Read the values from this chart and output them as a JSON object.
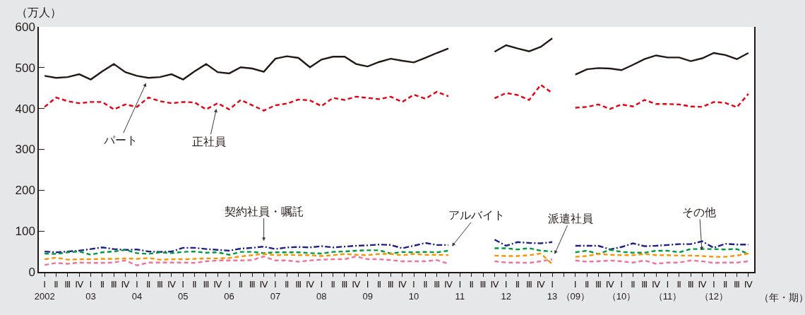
{
  "chart_data": {
    "type": "line",
    "ylabel": "（万人）",
    "xlabel": "（年・期）",
    "categories": [
      "Ⅰ\n2002",
      "Ⅱ",
      "Ⅲ",
      "Ⅳ",
      "Ⅰ\n03",
      "Ⅱ",
      "Ⅲ",
      "Ⅳ",
      "Ⅰ\n04",
      "Ⅱ",
      "Ⅲ",
      "Ⅳ",
      "Ⅰ\n05",
      "Ⅱ",
      "Ⅲ",
      "Ⅳ",
      "Ⅰ\n06",
      "Ⅱ",
      "Ⅲ",
      "Ⅳ",
      "Ⅰ\n07",
      "Ⅱ",
      "Ⅲ",
      "Ⅳ",
      "Ⅰ\n08",
      "Ⅱ",
      "Ⅲ",
      "Ⅳ",
      "Ⅰ\n09",
      "Ⅱ",
      "Ⅲ",
      "Ⅳ",
      "Ⅰ\n10",
      "Ⅱ",
      "Ⅲ",
      "Ⅳ",
      "Ⅰ\n11",
      "Ⅱ",
      "Ⅲ",
      "Ⅳ",
      "Ⅰ\n12",
      "Ⅱ",
      "Ⅲ",
      "Ⅳ",
      "Ⅰ\n13",
      null,
      "Ⅰ\n（09）",
      "Ⅱ",
      "Ⅲ",
      "Ⅳ",
      "Ⅰ\n（10）",
      "Ⅱ",
      "Ⅲ",
      "Ⅳ",
      "Ⅰ\n（11）",
      "Ⅱ",
      "Ⅲ",
      "Ⅳ",
      "Ⅰ\n（12）",
      "Ⅱ",
      "Ⅲ",
      "Ⅳ"
    ],
    "ylim": [
      0,
      600
    ],
    "yticks": [
      0,
      100,
      200,
      300,
      400,
      500,
      600
    ],
    "grid": false,
    "legend": false,
    "marker": "none",
    "series": [
      {
        "name": "パート",
        "color": "#231815",
        "line_style": "solid",
        "values": [
          480,
          475,
          477,
          484,
          471,
          491,
          509,
          489,
          480,
          475,
          477,
          484,
          471,
          491,
          509,
          489,
          486,
          501,
          498,
          490,
          522,
          528,
          524,
          501,
          520,
          527,
          527,
          509,
          503,
          514,
          522,
          517,
          513,
          524,
          536,
          547,
          null,
          null,
          null,
          539,
          555,
          547,
          540,
          551,
          572,
          null,
          483,
          496,
          499,
          498,
          494,
          507,
          521,
          530,
          525,
          525,
          516,
          523,
          536,
          531,
          521,
          536
        ]
      },
      {
        "name": "正社員",
        "color": "#e60012",
        "line_style": "dashed",
        "values": [
          404,
          427,
          418,
          413,
          416,
          416,
          398,
          410,
          404,
          427,
          418,
          413,
          416,
          415,
          398,
          413,
          398,
          421,
          408,
          395,
          408,
          412,
          422,
          420,
          406,
          426,
          421,
          429,
          426,
          423,
          429,
          416,
          434,
          424,
          441,
          430,
          null,
          null,
          null,
          425,
          438,
          433,
          421,
          458,
          438,
          null,
          402,
          404,
          410,
          399,
          410,
          405,
          421,
          411,
          411,
          410,
          405,
          404,
          416,
          414,
          403,
          436
        ]
      },
      {
        "name": "契約社員・嘱託",
        "color": "#1d2088",
        "line_style": "dashdot",
        "values": [
          50,
          48,
          50,
          52,
          56,
          60,
          56,
          54,
          55,
          50,
          49,
          50,
          59,
          59,
          56,
          54,
          52,
          57,
          59,
          62,
          56,
          60,
          61,
          60,
          63,
          60,
          62,
          64,
          65,
          67,
          66,
          58,
          64,
          71,
          66,
          66,
          null,
          null,
          null,
          79,
          64,
          73,
          71,
          70,
          73,
          null,
          64,
          64,
          64,
          55,
          61,
          70,
          63,
          64,
          66,
          68,
          68,
          75,
          59,
          69,
          67,
          67
        ]
      },
      {
        "name": "アルバイト",
        "color": "#009944",
        "line_style": "dashed",
        "values": [
          45,
          44,
          48,
          50,
          42,
          48,
          50,
          54,
          46,
          44,
          48,
          46,
          49,
          50,
          47,
          48,
          42,
          49,
          49,
          46,
          48,
          48,
          48,
          46,
          45,
          49,
          50,
          52,
          53,
          53,
          45,
          49,
          48,
          49,
          48,
          52,
          null,
          null,
          null,
          58,
          58,
          55,
          58,
          52,
          50,
          null,
          48,
          52,
          44,
          54,
          49,
          47,
          47,
          52,
          52,
          48,
          56,
          56,
          56,
          55,
          56,
          44
        ]
      },
      {
        "name": "派遣社員",
        "color": "#f07399",
        "line_style": "dashed",
        "values": [
          17,
          22,
          20,
          23,
          22,
          22,
          23,
          28,
          16,
          23,
          23,
          23,
          23,
          22,
          26,
          28,
          28,
          28,
          29,
          38,
          28,
          28,
          25,
          28,
          30,
          31,
          31,
          38,
          31,
          31,
          29,
          26,
          26,
          26,
          29,
          20,
          null,
          null,
          null,
          26,
          23,
          23,
          22,
          26,
          31,
          null,
          28,
          25,
          26,
          28,
          26,
          23,
          28,
          20,
          23,
          23,
          28,
          26,
          22,
          23,
          23,
          26
        ]
      },
      {
        "name": "その他",
        "color": "#f39800",
        "line_style": "dashed",
        "values": [
          31,
          35,
          30,
          31,
          31,
          32,
          32,
          33,
          32,
          34,
          30,
          31,
          31,
          32,
          33,
          33,
          34,
          38,
          41,
          44,
          41,
          42,
          41,
          41,
          39,
          41,
          44,
          42,
          41,
          44,
          44,
          41,
          44,
          42,
          42,
          41,
          null,
          null,
          null,
          40,
          39,
          39,
          41,
          45,
          19,
          null,
          37,
          39,
          44,
          42,
          41,
          41,
          44,
          41,
          41,
          40,
          40,
          39,
          37,
          37,
          40,
          45
        ]
      }
    ]
  }
}
